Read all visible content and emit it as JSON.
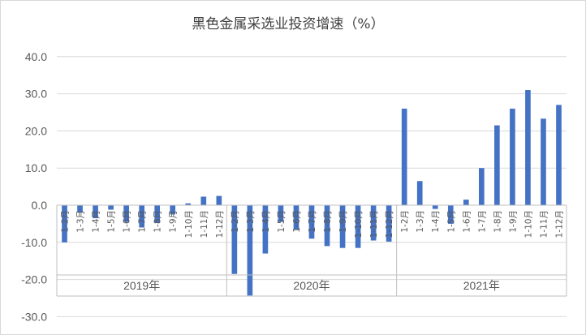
{
  "chart_data": {
    "type": "bar",
    "title": "黑色金属采选业投资增速（%）",
    "ylim": [
      -30,
      40
    ],
    "yticks": [
      -30.0,
      -20.0,
      -10.0,
      0.0,
      10.0,
      20.0,
      30.0,
      40.0
    ],
    "ytick_labels": [
      "-30.0",
      "-20.0",
      "-10.0",
      "0.0",
      "10.0",
      "20.0",
      "30.0",
      "40.0"
    ],
    "grid": true,
    "bar_color": "#4472c4",
    "groups": [
      {
        "label": "2019年",
        "categories": [
          "1-2月",
          "1-3月",
          "1-4月",
          "1-5月",
          "1-6月",
          "1-7月",
          "1-8月",
          "1-9月",
          "1-10月",
          "1-11月",
          "1-12月"
        ],
        "values": [
          -10.0,
          -2.0,
          -3.5,
          -1.2,
          -4.5,
          -6.0,
          -4.8,
          -2.5,
          0.5,
          2.3,
          2.5
        ]
      },
      {
        "label": "2020年",
        "categories": [
          "1-2月",
          "1-3月",
          "1-4月",
          "1-5月",
          "1-6月",
          "1-7月",
          "1-8月",
          "1-9月",
          "1-10月",
          "1-11月",
          "1-12月"
        ],
        "values": [
          -18.5,
          -24.3,
          -13.0,
          -4.5,
          -6.5,
          -9.0,
          -11.0,
          -11.5,
          -11.5,
          -9.5,
          -9.8
        ]
      },
      {
        "label": "2021年",
        "categories": [
          "1-2月",
          "1-3月",
          "1-4月",
          "1-5月",
          "1-6月",
          "1-7月",
          "1-8月",
          "1-9月",
          "1-10月",
          "1-11月",
          "1-12月"
        ],
        "values": [
          26.0,
          6.5,
          -1.0,
          -5.0,
          1.5,
          10.0,
          21.5,
          26.0,
          31.0,
          23.3,
          27.0
        ]
      }
    ]
  }
}
